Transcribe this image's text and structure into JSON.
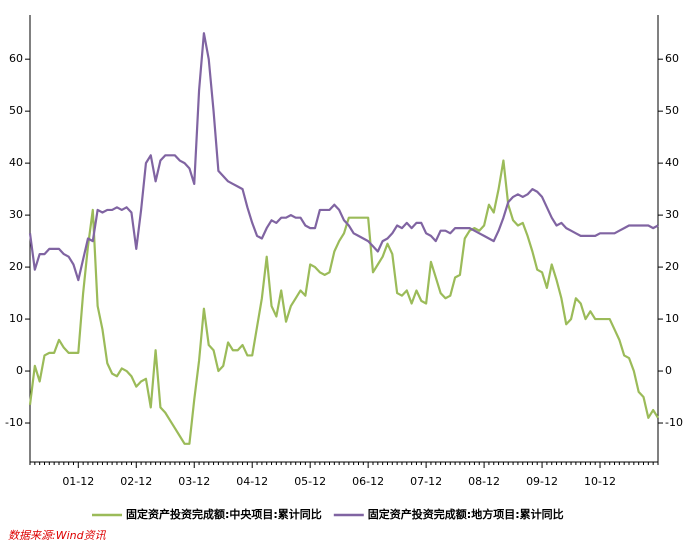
{
  "chart_data": {
    "type": "line",
    "categories": [
      null,
      null,
      null,
      null,
      null,
      null,
      null,
      null,
      null,
      null,
      "01-12",
      null,
      null,
      null,
      null,
      null,
      null,
      null,
      null,
      null,
      null,
      null,
      "02-12",
      null,
      null,
      null,
      null,
      null,
      null,
      null,
      null,
      null,
      null,
      null,
      "03-12",
      null,
      null,
      null,
      null,
      null,
      null,
      null,
      null,
      null,
      null,
      null,
      "04-12",
      null,
      null,
      null,
      null,
      null,
      null,
      null,
      null,
      null,
      null,
      null,
      "05-12",
      null,
      null,
      null,
      null,
      null,
      null,
      null,
      null,
      null,
      null,
      null,
      "06-12",
      null,
      null,
      null,
      null,
      null,
      null,
      null,
      null,
      null,
      null,
      null,
      "07-12",
      null,
      null,
      null,
      null,
      null,
      null,
      null,
      null,
      null,
      null,
      null,
      "08-12",
      null,
      null,
      null,
      null,
      null,
      null,
      null,
      null,
      null,
      null,
      null,
      "09-12",
      null,
      null,
      null,
      null,
      null,
      null,
      null,
      null,
      null,
      null,
      null,
      "10-12",
      null,
      null,
      null,
      null,
      null,
      null,
      null,
      null,
      null,
      null,
      null,
      null
    ],
    "series": [
      {
        "name": "固定资产投资完成额:中央项目:累计同比",
        "color": "#9bbb59",
        "values": [
          -6.5,
          1,
          -2,
          3,
          3.5,
          3.5,
          6,
          4.5,
          3.5,
          3.5,
          3.5,
          15,
          24,
          31,
          12.5,
          8,
          1.5,
          -0.5,
          -1,
          0.5,
          0,
          -1,
          -3,
          -2,
          -1.5,
          -7,
          4,
          -7,
          -8,
          -9.5,
          -11,
          -12.5,
          -14,
          -14,
          -5.5,
          2,
          12,
          5,
          4,
          0,
          1,
          5.5,
          4,
          4,
          5,
          3,
          3,
          8.5,
          14,
          22,
          12.5,
          10.5,
          15.5,
          9.5,
          12.5,
          14,
          15.5,
          14.5,
          20.5,
          20,
          19,
          18.5,
          19,
          23,
          25,
          26.5,
          29.5,
          29.5,
          29.5,
          29.5,
          29.5,
          19,
          20.5,
          22,
          24.5,
          22.5,
          15,
          14.5,
          15.5,
          13,
          15.5,
          13.5,
          13,
          21,
          18,
          15,
          14,
          14.5,
          18,
          18.5,
          25.5,
          27,
          27.5,
          27,
          28,
          32,
          30.5,
          35,
          40.5,
          32,
          29,
          28,
          28.5,
          26,
          23,
          19.5,
          19,
          16,
          20.5,
          17.5,
          14,
          9,
          10,
          14,
          13,
          10,
          11.5,
          10,
          10,
          10,
          10,
          8,
          6,
          3,
          2.5,
          0,
          -4,
          -5,
          -9,
          -7.5,
          -9
        ]
      },
      {
        "name": "固定资产投资完成额:地方项目:累计同比",
        "color": "#8064a2",
        "values": [
          26.5,
          19.5,
          22.5,
          22.5,
          23.5,
          23.5,
          23.5,
          22.5,
          22,
          20.5,
          17.5,
          21.5,
          25.5,
          25,
          31,
          30.5,
          31,
          31,
          31.5,
          31,
          31.5,
          30.5,
          23.5,
          31,
          40,
          41.5,
          36.5,
          40.5,
          41.5,
          41.5,
          41.5,
          40.5,
          40,
          39,
          36,
          54,
          65,
          60,
          50,
          38.5,
          37.5,
          36.5,
          36,
          35.5,
          35,
          31.5,
          28.5,
          26,
          25.5,
          27.5,
          29,
          28.5,
          29.5,
          29.5,
          30,
          29.5,
          29.5,
          28,
          27.5,
          27.5,
          31,
          31,
          31,
          32,
          31,
          29,
          28,
          26.5,
          26,
          25.5,
          25,
          24,
          23,
          25,
          25.5,
          26.5,
          28,
          27.5,
          28.5,
          27.5,
          28.5,
          28.5,
          26.5,
          26,
          25,
          27,
          27,
          26.5,
          27.5,
          27.5,
          27.5,
          27.5,
          27,
          26.5,
          26,
          25.5,
          25,
          27,
          29.5,
          32.5,
          33.5,
          34,
          33.5,
          34,
          35,
          34.5,
          33.5,
          31.5,
          29.5,
          28,
          28.5,
          27.5,
          27,
          26.5,
          26,
          26,
          26,
          26,
          26.5,
          26.5,
          26.5,
          26.5,
          27,
          27.5,
          28,
          28,
          28,
          28,
          28,
          27.5,
          28
        ]
      }
    ],
    "ylim": [
      -17.5,
      68.5
    ],
    "yticks": [
      -10,
      0,
      10,
      20,
      30,
      40,
      50,
      60
    ],
    "y2lim": [
      -17.5,
      68.5
    ],
    "y2ticks": [
      -10,
      0,
      10,
      20,
      30,
      40,
      50,
      60
    ],
    "source": "数据来源:Wind资讯"
  }
}
